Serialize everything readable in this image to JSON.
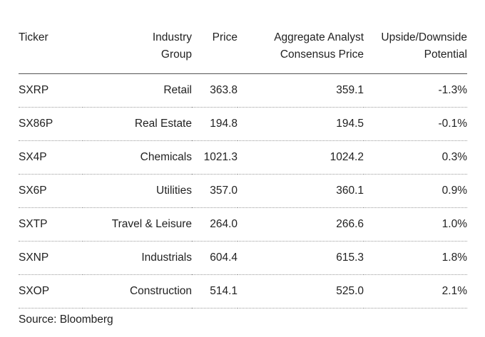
{
  "table": {
    "headers": {
      "ticker": "Ticker",
      "industry_line1": "Industry",
      "industry_line2": "Group",
      "price": "Price",
      "consensus_line1": "Aggregate Analyst",
      "consensus_line2": "Consensus Price",
      "upside_line1": "Upside/Downside",
      "upside_line2": "Potential"
    },
    "rows": [
      {
        "ticker": "SXRP",
        "industry": "Retail",
        "price": "363.8",
        "consensus": "359.1",
        "upside": "-1.3%"
      },
      {
        "ticker": "SX86P",
        "industry": "Real Estate",
        "price": "194.8",
        "consensus": "194.5",
        "upside": "-0.1%"
      },
      {
        "ticker": "SX4P",
        "industry": "Chemicals",
        "price": "1021.3",
        "consensus": "1024.2",
        "upside": "0.3%"
      },
      {
        "ticker": "SX6P",
        "industry": "Utilities",
        "price": "357.0",
        "consensus": "360.1",
        "upside": "0.9%"
      },
      {
        "ticker": "SXTP",
        "industry": "Travel & Leisure",
        "price": "264.0",
        "consensus": "266.6",
        "upside": "1.0%"
      },
      {
        "ticker": "SXNP",
        "industry": "Industrials",
        "price": "604.4",
        "consensus": "615.3",
        "upside": "1.8%"
      },
      {
        "ticker": "SXOP",
        "industry": "Construction",
        "price": "514.1",
        "consensus": "525.0",
        "upside": "2.1%"
      }
    ]
  },
  "source": "Source: Bloomberg"
}
